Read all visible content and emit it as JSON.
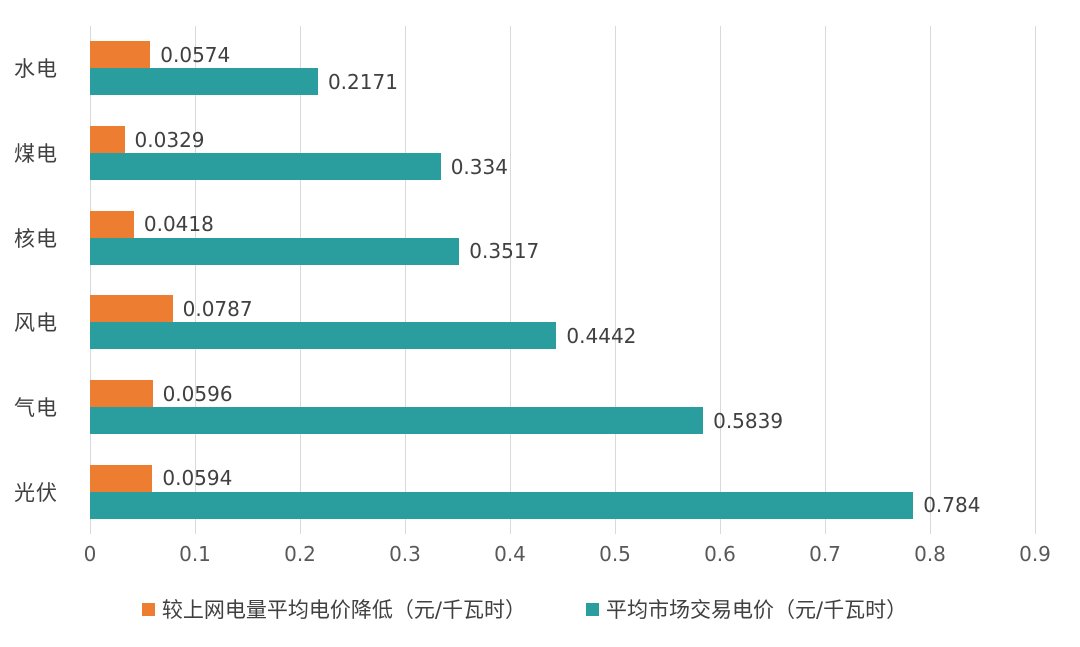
{
  "chart_data": {
    "type": "bar",
    "orientation": "horizontal",
    "title": "",
    "xlabel": "",
    "ylabel": "",
    "categories": [
      "水电",
      "煤电",
      "核电",
      "风电",
      "气电",
      "光伏"
    ],
    "series": [
      {
        "name": "较上网电量平均电价降低（元/千瓦时）",
        "color": "#ED7D31",
        "values": [
          0.0574,
          0.0329,
          0.0418,
          0.0787,
          0.0596,
          0.0594
        ],
        "labels": [
          "0.0574",
          "0.0329",
          "0.0418",
          "0.0787",
          "0.0596",
          "0.0594"
        ]
      },
      {
        "name": "平均市场交易电价（元/千瓦时）",
        "color": "#2A9D9E",
        "values": [
          0.2171,
          0.334,
          0.3517,
          0.4442,
          0.5839,
          0.784
        ],
        "labels": [
          "0.2171",
          "0.334",
          "0.3517",
          "0.4442",
          "0.5839",
          "0.784"
        ]
      }
    ],
    "xlim": [
      0,
      0.9
    ],
    "ticks": [
      0,
      0.1,
      0.2,
      0.3,
      0.4,
      0.5,
      0.6,
      0.7,
      0.8,
      0.9
    ],
    "tick_labels": [
      "0",
      "0.1",
      "0.2",
      "0.3",
      "0.4",
      "0.5",
      "0.6",
      "0.7",
      "0.8",
      "0.9"
    ],
    "grid": true,
    "gridline_color": "#d9d9d9",
    "legend_position": "bottom",
    "background_color": "#ffffff"
  }
}
